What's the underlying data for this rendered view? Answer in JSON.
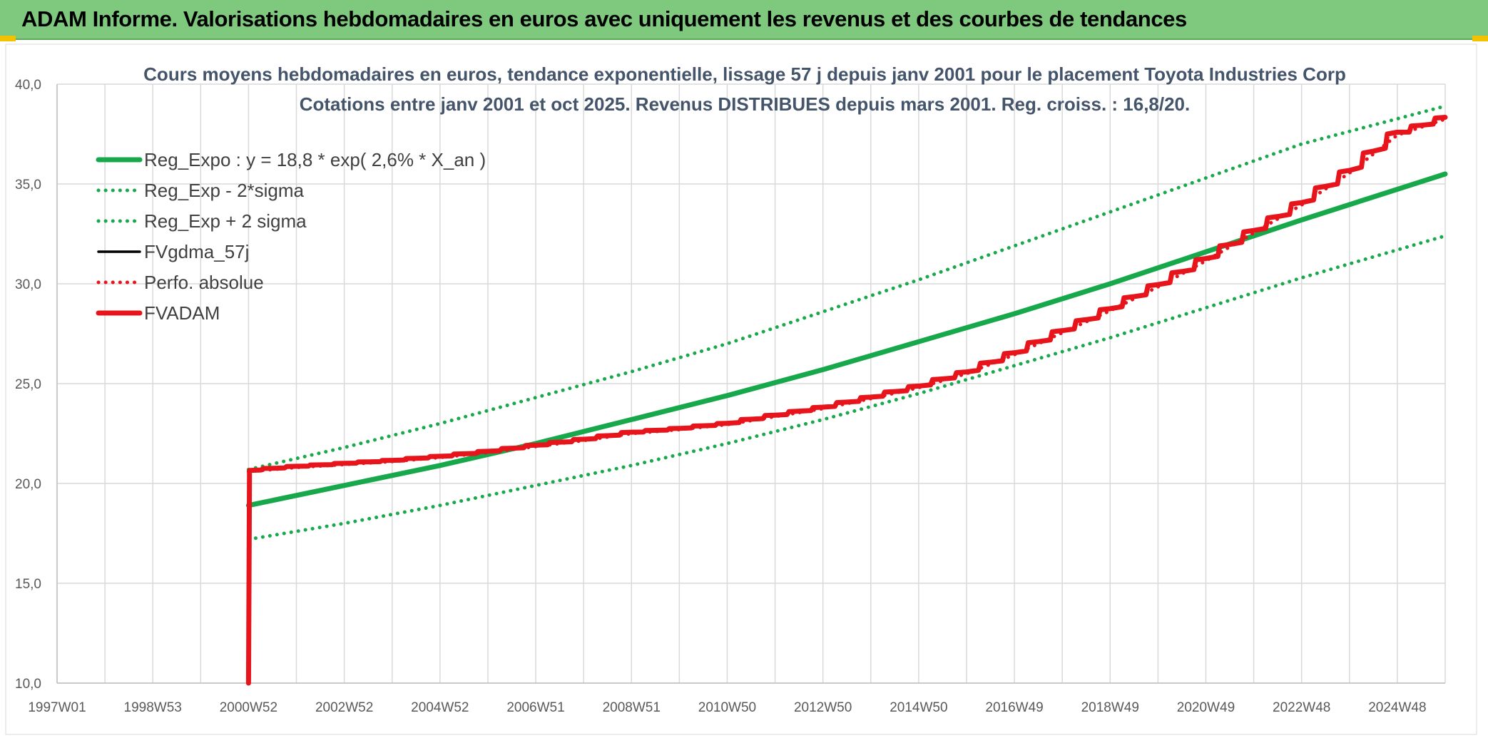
{
  "header": {
    "title": "ADAM Informe. Valorisations hebdomadaires en euros avec uniquement les revenus et des courbes de tendances"
  },
  "colors": {
    "banner": "#7fc97f",
    "trend": "#17a84b",
    "dotted_green": "#1aa84c",
    "black": "#000000",
    "red": "#e8141c",
    "grid": "#d9d9d9",
    "corner": "#f2c200"
  },
  "chart_data": {
    "type": "line",
    "title_line1": "Cours moyens hebdomadaires en euros, tendance exponentielle, lissage 57 j depuis janv 2001 pour le placement Toyota Industries Corp",
    "title_line2": "Cotations entre janv 2001 et oct 2025. Revenus DISTRIBUES depuis mars 2001. Reg. croiss. : 16,8/20.",
    "xlabel": "",
    "ylabel": "",
    "x_range": [
      1997.0,
      2026.0
    ],
    "ylim": [
      10,
      40
    ],
    "yticks": [
      "10,0",
      "15,0",
      "20,0",
      "25,0",
      "30,0",
      "35,0",
      "40,0"
    ],
    "ytick_values": [
      10,
      15,
      20,
      25,
      30,
      35,
      40
    ],
    "xticks": [
      "1997W01",
      "1998W53",
      "2000W52",
      "2002W52",
      "2004W52",
      "2006W51",
      "2008W51",
      "2010W50",
      "2012W50",
      "2014W50",
      "2016W49",
      "2018W49",
      "2020W49",
      "2022W48",
      "2024W48"
    ],
    "xtick_positions": [
      1997.0,
      1999.0,
      2001.0,
      2003.0,
      2005.0,
      2007.0,
      2009.0,
      2011.0,
      2013.0,
      2015.0,
      2017.0,
      2019.0,
      2021.0,
      2023.0,
      2025.0
    ],
    "grid": true,
    "legend_position": "top-left",
    "series": [
      {
        "name": "Reg_Expo : y = 18,8 * exp( 2,6% *  X_an )",
        "style": "solid-thick",
        "color": "#17a84b",
        "x": [
          2001.0,
          2003.0,
          2005.0,
          2007.0,
          2009.0,
          2011.0,
          2013.0,
          2015.0,
          2017.0,
          2019.0,
          2021.0,
          2023.0,
          2026.0
        ],
        "values": [
          18.9,
          19.9,
          20.9,
          22.0,
          23.2,
          24.4,
          25.7,
          27.1,
          28.5,
          30.0,
          31.6,
          33.2,
          35.5
        ]
      },
      {
        "name": "Reg_Exp - 2*sigma",
        "style": "dotted",
        "color": "#1aa84c",
        "x": [
          2001.0,
          2003.0,
          2005.0,
          2007.0,
          2009.0,
          2011.0,
          2013.0,
          2015.0,
          2017.0,
          2019.0,
          2021.0,
          2023.0,
          2026.0
        ],
        "values": [
          17.2,
          18.0,
          18.9,
          19.9,
          20.9,
          22.0,
          23.2,
          24.5,
          25.9,
          27.3,
          28.8,
          30.3,
          32.4
        ]
      },
      {
        "name": "Reg_Exp + 2 sigma",
        "style": "dotted",
        "color": "#1aa84c",
        "x": [
          2001.0,
          2003.0,
          2005.0,
          2007.0,
          2009.0,
          2011.0,
          2013.0,
          2015.0,
          2017.0,
          2019.0,
          2021.0,
          2023.0,
          2026.0
        ],
        "values": [
          20.7,
          21.8,
          23.0,
          24.3,
          25.6,
          27.0,
          28.6,
          30.2,
          31.9,
          33.6,
          35.3,
          37.0,
          38.9
        ]
      },
      {
        "name": "FVgdma_57j",
        "style": "solid-thin",
        "color": "#000000",
        "x": [
          2001.0,
          2002.0,
          2003.0,
          2004.0,
          2005.0,
          2006.0,
          2007.0,
          2008.0,
          2009.0,
          2010.0,
          2011.0,
          2012.0,
          2013.0,
          2014.0,
          2015.0,
          2016.0,
          2017.0,
          2018.0,
          2019.0,
          2020.0,
          2021.0,
          2022.0,
          2023.0,
          2024.0,
          2025.0,
          2026.0
        ],
        "values": [
          20.65,
          20.85,
          21.0,
          21.15,
          21.35,
          21.6,
          21.9,
          22.2,
          22.55,
          22.75,
          23.0,
          23.4,
          23.8,
          24.3,
          24.85,
          25.55,
          26.5,
          27.6,
          28.7,
          29.9,
          31.2,
          32.6,
          34.0,
          35.6,
          37.5,
          38.3
        ]
      },
      {
        "name": "Perfo. absolue",
        "style": "dotted",
        "color": "#e8141c",
        "x": [
          2001.0,
          2002.0,
          2003.0,
          2004.0,
          2005.0,
          2006.0,
          2007.0,
          2008.0,
          2009.0,
          2010.0,
          2011.0,
          2012.0,
          2013.0,
          2014.0,
          2015.0,
          2016.0,
          2017.0,
          2018.0,
          2019.0,
          2020.0,
          2021.0,
          2022.0,
          2023.0,
          2024.0,
          2025.0,
          2026.0
        ],
        "values": [
          20.6,
          20.8,
          20.95,
          21.1,
          21.3,
          21.55,
          21.85,
          22.15,
          22.5,
          22.7,
          22.95,
          23.35,
          23.75,
          24.25,
          24.8,
          25.5,
          26.45,
          27.55,
          28.65,
          29.85,
          31.15,
          32.55,
          33.95,
          35.55,
          37.45,
          38.25
        ]
      },
      {
        "name": "FVADAM",
        "style": "solid-thick",
        "color": "#e8141c",
        "x": [
          2001.0,
          2001.02,
          2002.0,
          2003.0,
          2004.0,
          2005.0,
          2006.0,
          2007.0,
          2008.0,
          2009.0,
          2010.0,
          2011.0,
          2012.0,
          2013.0,
          2014.0,
          2015.0,
          2016.0,
          2017.0,
          2018.0,
          2019.0,
          2020.0,
          2021.0,
          2022.0,
          2023.0,
          2024.0,
          2025.0,
          2026.0
        ],
        "values": [
          10.0,
          20.65,
          20.85,
          21.0,
          21.15,
          21.35,
          21.6,
          21.9,
          22.2,
          22.55,
          22.75,
          23.0,
          23.4,
          23.8,
          24.3,
          24.85,
          25.55,
          26.5,
          27.6,
          28.7,
          29.9,
          31.2,
          32.6,
          34.0,
          35.6,
          37.5,
          38.3
        ]
      }
    ]
  }
}
